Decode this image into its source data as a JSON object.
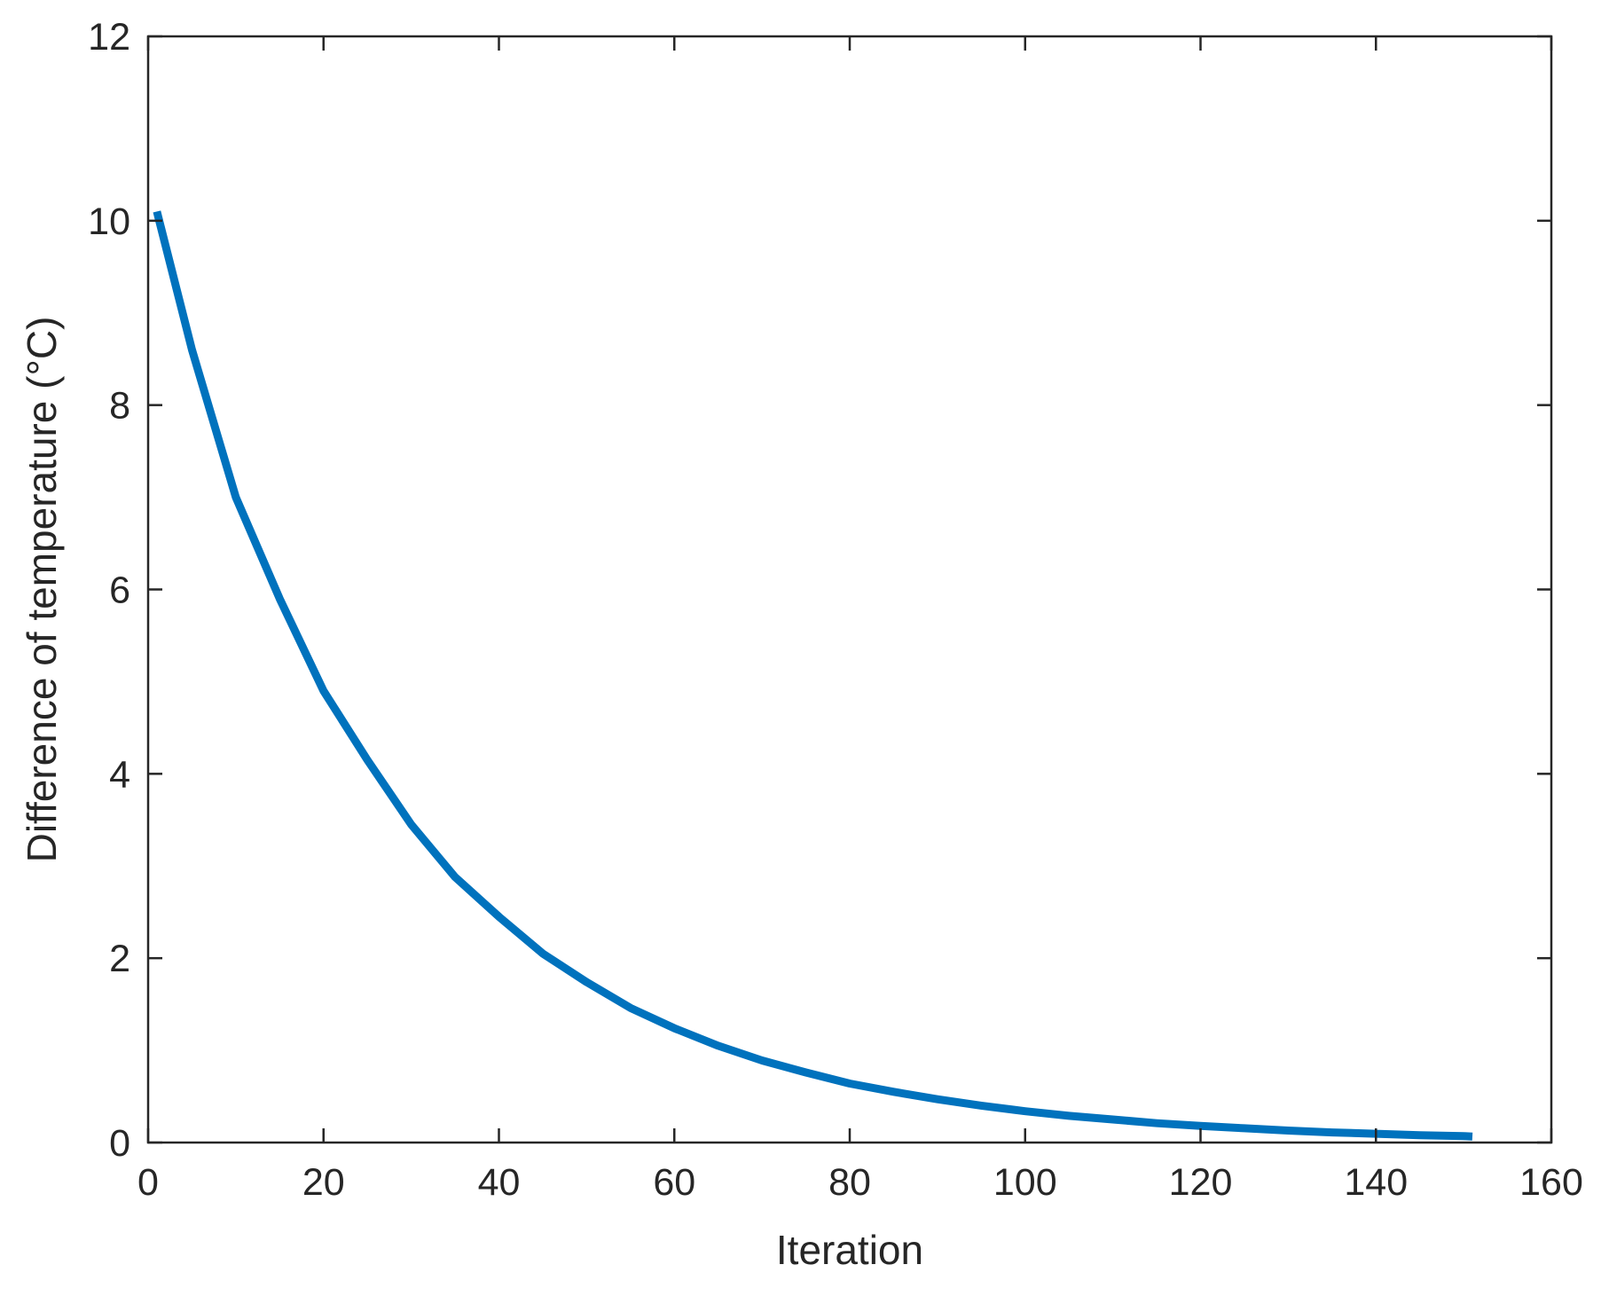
{
  "chart_data": {
    "type": "line",
    "title": "",
    "xlabel": "Iteration",
    "ylabel": "Difference of temperature (°C)",
    "xlim": [
      0,
      160
    ],
    "ylim": [
      0,
      12
    ],
    "xticks": [
      0,
      20,
      40,
      60,
      80,
      100,
      120,
      140,
      160
    ],
    "xtick_labels": [
      "0",
      "20",
      "40",
      "60",
      "80",
      "100",
      "120",
      "140",
      "160"
    ],
    "yticks": [
      0,
      2,
      4,
      6,
      8,
      10,
      12
    ],
    "ytick_labels": [
      "0",
      "2",
      "4",
      "6",
      "8",
      "10",
      "12"
    ],
    "grid": false,
    "legend": "none",
    "colors": {
      "line": "#0072BD",
      "axes": "#262626",
      "background": "#ffffff"
    },
    "series": [
      {
        "x": [
          1,
          5,
          10,
          15,
          20,
          25,
          30,
          35,
          40,
          45,
          50,
          55,
          60,
          65,
          70,
          75,
          80,
          85,
          90,
          95,
          100,
          105,
          110,
          115,
          120,
          125,
          130,
          135,
          140,
          145,
          150,
          151
        ],
        "values": [
          10.1,
          8.6,
          7.0,
          5.9,
          4.9,
          4.15,
          3.45,
          2.88,
          2.45,
          2.05,
          1.74,
          1.46,
          1.24,
          1.05,
          0.89,
          0.76,
          0.64,
          0.55,
          0.47,
          0.4,
          0.34,
          0.29,
          0.25,
          0.21,
          0.18,
          0.155,
          0.13,
          0.11,
          0.095,
          0.08,
          0.07,
          0.065
        ]
      }
    ]
  }
}
